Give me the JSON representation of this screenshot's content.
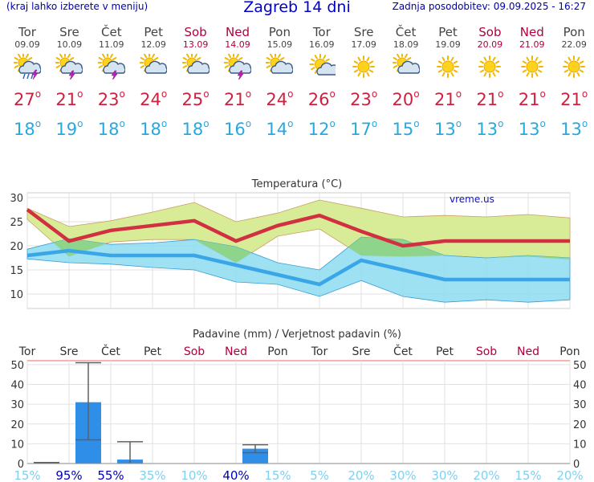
{
  "header": {
    "left_note": "(kraj lahko izberete v meniju)",
    "title": "Zagreb 14 dni",
    "updated": "Zadnja posodobitev: 09.09.2025 - 16:27"
  },
  "days": [
    {
      "name": "Tor",
      "date": "09.09",
      "weekend": false,
      "icon": "sun-cloud-rain-thunder-icon",
      "max": "27",
      "min": "18"
    },
    {
      "name": "Sre",
      "date": "10.09",
      "weekend": false,
      "icon": "sun-cloud-thunder-icon",
      "max": "21",
      "min": "19"
    },
    {
      "name": "Čet",
      "date": "11.09",
      "weekend": false,
      "icon": "sun-cloud-thunder-icon",
      "max": "23",
      "min": "18"
    },
    {
      "name": "Pet",
      "date": "12.09",
      "weekend": false,
      "icon": "sun-cloud-icon",
      "max": "24",
      "min": "18"
    },
    {
      "name": "Sob",
      "date": "13.09",
      "weekend": true,
      "icon": "sun-cloud-icon",
      "max": "25",
      "min": "18"
    },
    {
      "name": "Ned",
      "date": "14.09",
      "weekend": true,
      "icon": "sun-cloud-thunder-icon",
      "max": "21",
      "min": "16"
    },
    {
      "name": "Pon",
      "date": "15.09",
      "weekend": false,
      "icon": "sun-cloud-icon",
      "max": "24",
      "min": "14"
    },
    {
      "name": "Tor",
      "date": "16.09",
      "weekend": false,
      "icon": "sun-small-cloud-icon",
      "max": "26",
      "min": "12"
    },
    {
      "name": "Sre",
      "date": "17.09",
      "weekend": false,
      "icon": "sun-icon",
      "max": "23",
      "min": "17"
    },
    {
      "name": "Čet",
      "date": "18.09",
      "weekend": false,
      "icon": "sun-cloud-icon",
      "max": "20",
      "min": "15"
    },
    {
      "name": "Pet",
      "date": "19.09",
      "weekend": false,
      "icon": "sun-icon",
      "max": "21",
      "min": "13"
    },
    {
      "name": "Sob",
      "date": "20.09",
      "weekend": true,
      "icon": "sun-icon",
      "max": "21",
      "min": "13"
    },
    {
      "name": "Ned",
      "date": "21.09",
      "weekend": true,
      "icon": "sun-icon",
      "max": "21",
      "min": "13"
    },
    {
      "name": "Pon",
      "date": "22.09",
      "weekend": false,
      "icon": "sun-icon",
      "max": "21",
      "min": "13"
    }
  ],
  "colors": {
    "max_text": "#d02040",
    "min_text": "#28a8e0",
    "weekend": "#b00040",
    "max_line": "#d03040",
    "min_line": "#3aa6e8",
    "max_band": "#d8ec98",
    "min_band": "#8cdcf0",
    "overlap_band": "#8ed48a",
    "precip_bar": "#2f8fe8",
    "whisker": "#606060"
  },
  "chart_data": [
    {
      "type": "line",
      "title": "Temperatura (°C)",
      "watermark": "vreme.us",
      "categories": [
        "09.09",
        "10.09",
        "11.09",
        "12.09",
        "13.09",
        "14.09",
        "15.09",
        "16.09",
        "17.09",
        "18.09",
        "19.09",
        "20.09",
        "21.09",
        "22.09"
      ],
      "ylim": [
        7,
        31
      ],
      "yticks": [
        10,
        15,
        20,
        25,
        30
      ],
      "series": [
        {
          "key": "max",
          "values": [
            27.5,
            21,
            23.2,
            24.2,
            25.2,
            21,
            24.2,
            26.3,
            23,
            20,
            21,
            21,
            21,
            21
          ]
        },
        {
          "key": "min",
          "values": [
            18,
            19,
            18,
            18,
            18,
            16,
            14,
            12,
            17,
            15,
            13,
            13,
            13,
            13
          ]
        },
        {
          "key": "max_band_upper",
          "values": [
            27.8,
            24,
            25.2,
            27,
            29,
            25,
            26.8,
            29.5,
            27.8,
            26,
            26.3,
            26,
            26.5,
            25.8
          ]
        },
        {
          "key": "max_band_lower",
          "values": [
            25.5,
            17.8,
            20.8,
            21.3,
            21.3,
            16.5,
            22,
            23.5,
            18,
            17.8,
            18,
            17.5,
            17.8,
            17.2
          ]
        },
        {
          "key": "min_band_upper",
          "values": [
            19.3,
            21.5,
            20.3,
            20.6,
            21.3,
            19.8,
            16.5,
            15,
            21.8,
            21.3,
            18,
            17.5,
            18,
            17.5
          ]
        },
        {
          "key": "min_band_lower",
          "values": [
            17.3,
            16.5,
            16.2,
            15.5,
            15,
            12.5,
            12,
            9.5,
            12.8,
            9.5,
            8.3,
            8.8,
            8.3,
            8.8
          ]
        }
      ]
    },
    {
      "type": "bar",
      "title": "Padavine (mm) / Verjetnost padavin (%)",
      "categories": [
        "Tor",
        "Sre",
        "Čet",
        "Pet",
        "Sob",
        "Ned",
        "Pon",
        "Tor",
        "Sre",
        "Čet",
        "Pet",
        "Sob",
        "Ned",
        "Pon"
      ],
      "weekend": [
        false,
        false,
        false,
        false,
        true,
        true,
        false,
        false,
        false,
        false,
        false,
        true,
        true,
        false
      ],
      "ylim": [
        0,
        52
      ],
      "yticks": [
        0,
        10,
        20,
        30,
        40,
        50
      ],
      "values": [
        0,
        31,
        2,
        0,
        0,
        7.5,
        0,
        0,
        0,
        0,
        0,
        0,
        0,
        0
      ],
      "whisker_low": [
        null,
        12,
        null,
        null,
        null,
        5.5,
        null,
        null,
        null,
        null,
        null,
        null,
        null,
        null
      ],
      "whisker_high": [
        0.5,
        51,
        11,
        null,
        null,
        9.5,
        null,
        null,
        null,
        null,
        null,
        null,
        null,
        null
      ],
      "probability": [
        "15%",
        "95%",
        "55%",
        "35%",
        "10%",
        "40%",
        "15%",
        "5%",
        "20%",
        "30%",
        "30%",
        "20%",
        "15%",
        "20%"
      ],
      "probability_values": [
        15,
        95,
        55,
        35,
        10,
        40,
        15,
        5,
        20,
        30,
        30,
        20,
        15,
        20
      ]
    }
  ]
}
